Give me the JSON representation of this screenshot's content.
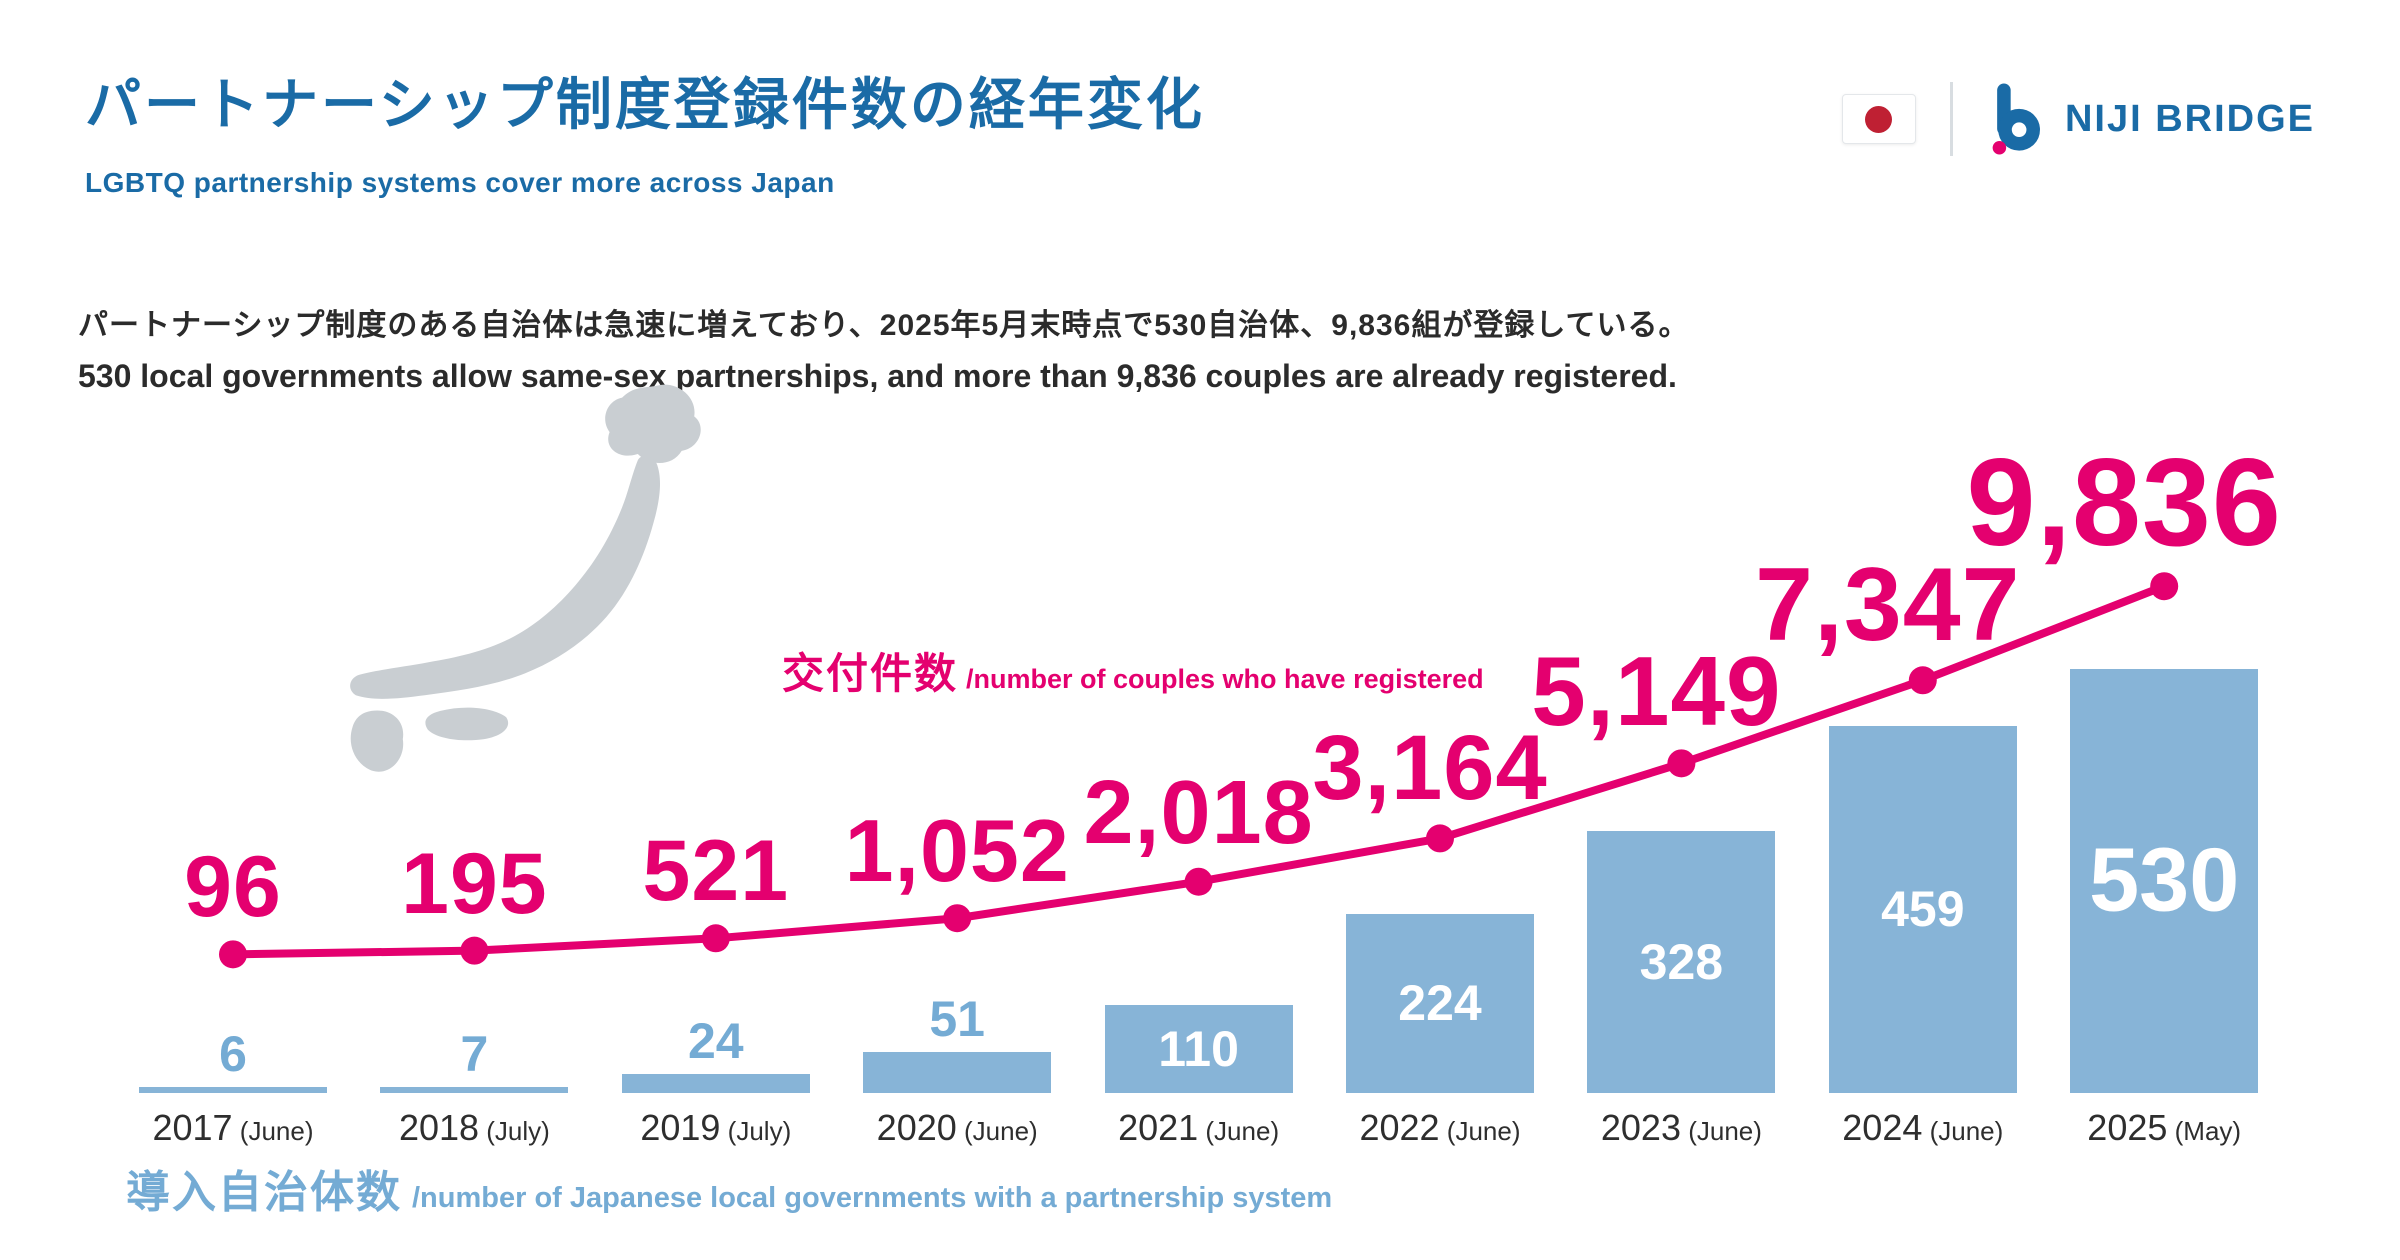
{
  "header": {
    "title_ja": "パートナーシップ制度登録件数の経年変化",
    "subtitle_en": "LGBTQ partnership systems cover more across Japan",
    "brand": "NIJI BRIDGE"
  },
  "intro": {
    "ja": "パートナーシップ制度のある自治体は急速に増えており、2025年5月末時点で530自治体、9,836組が登録している。",
    "en": "530 local governments allow same-sex partnerships, and more than 9,836 couples are already registered."
  },
  "chart_data": {
    "type": "bar",
    "subtype": "bar+line combo",
    "categories": [
      {
        "year": "2017",
        "month": "(June)"
      },
      {
        "year": "2018",
        "month": "(July)"
      },
      {
        "year": "2019",
        "month": "(July)"
      },
      {
        "year": "2020",
        "month": "(June)"
      },
      {
        "year": "2021",
        "month": "(June)"
      },
      {
        "year": "2022",
        "month": "(June)"
      },
      {
        "year": "2023",
        "month": "(June)"
      },
      {
        "year": "2024",
        "month": "(June)"
      },
      {
        "year": "2025",
        "month": "(May)"
      }
    ],
    "series": [
      {
        "name_ja": "交付件数",
        "name_en": "/number of couples who have registered",
        "type": "line",
        "color": "#e4006f",
        "values": [
          96,
          195,
          521,
          1052,
          2018,
          3164,
          5149,
          7347,
          9836
        ],
        "labels": [
          "96",
          "195",
          "521",
          "1,052",
          "2,018",
          "3,164",
          "5,149",
          "7,347",
          "9,836"
        ]
      },
      {
        "name_ja": "導入自治体数",
        "name_en": "/number of Japanese local governments with a partnership system",
        "type": "bar",
        "color": "#87b4d7",
        "values": [
          6,
          7,
          24,
          51,
          110,
          224,
          328,
          459,
          530
        ],
        "labels": [
          "6",
          "7",
          "24",
          "51",
          "110",
          "224",
          "328",
          "459",
          "530"
        ]
      }
    ],
    "ylim_line": [
      0,
      10000
    ],
    "ylim_bar": [
      0,
      560
    ],
    "grid": false,
    "legend_position": "inline-annotations"
  },
  "colors": {
    "title_blue": "#1a6ba6",
    "pink": "#e4006f",
    "bar_blue": "#87b4d7",
    "label_blue": "#74abd4",
    "map_gray": "#c9ced2",
    "text_dark": "#2b2b2b",
    "flag_red": "#bf2033"
  }
}
